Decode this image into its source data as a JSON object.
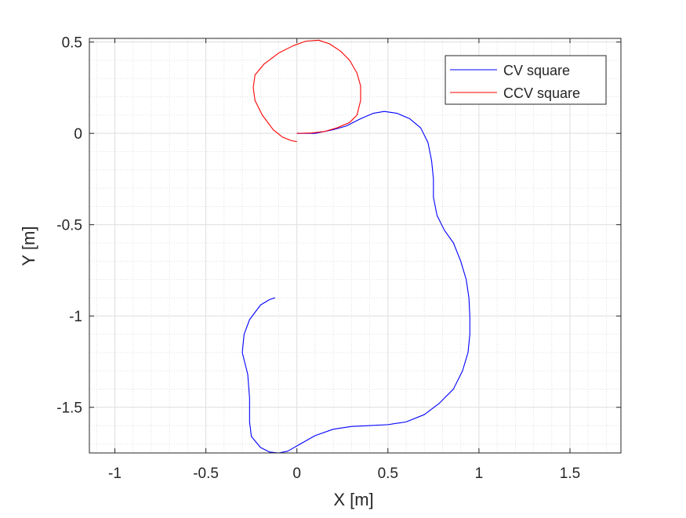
{
  "chart_data": {
    "type": "line",
    "title": "",
    "xlabel": "X [m]",
    "ylabel": "Y [m]",
    "xlim": [
      -1.14,
      1.78
    ],
    "ylim": [
      -1.75,
      0.52
    ],
    "xticks": [
      -1,
      -0.5,
      0,
      0.5,
      1,
      1.5
    ],
    "xtick_labels": [
      "-1",
      "-0.5",
      "0",
      "0.5",
      "1",
      "1.5"
    ],
    "yticks": [
      -1.5,
      -1,
      -0.5,
      0,
      0.5
    ],
    "ytick_labels": [
      "-1.5",
      "-1",
      "-0.5",
      "0",
      "0.5"
    ],
    "grid": true,
    "minor_grid": true,
    "legend_position": "top-right",
    "series": [
      {
        "name": "CV square",
        "color": "#0000ff",
        "points": [
          [
            0.0,
            0.0
          ],
          [
            0.1,
            0.0
          ],
          [
            0.2,
            0.02
          ],
          [
            0.27,
            0.04
          ],
          [
            0.35,
            0.08
          ],
          [
            0.42,
            0.11
          ],
          [
            0.48,
            0.12
          ],
          [
            0.55,
            0.11
          ],
          [
            0.62,
            0.08
          ],
          [
            0.68,
            0.03
          ],
          [
            0.72,
            -0.05
          ],
          [
            0.74,
            -0.15
          ],
          [
            0.75,
            -0.25
          ],
          [
            0.75,
            -0.35
          ],
          [
            0.77,
            -0.45
          ],
          [
            0.81,
            -0.53
          ],
          [
            0.86,
            -0.6
          ],
          [
            0.9,
            -0.7
          ],
          [
            0.93,
            -0.8
          ],
          [
            0.945,
            -0.9
          ],
          [
            0.95,
            -1.0
          ],
          [
            0.95,
            -1.1
          ],
          [
            0.94,
            -1.2
          ],
          [
            0.91,
            -1.3
          ],
          [
            0.86,
            -1.4
          ],
          [
            0.78,
            -1.48
          ],
          [
            0.7,
            -1.54
          ],
          [
            0.6,
            -1.58
          ],
          [
            0.5,
            -1.595
          ],
          [
            0.4,
            -1.6
          ],
          [
            0.3,
            -1.605
          ],
          [
            0.2,
            -1.62
          ],
          [
            0.1,
            -1.655
          ],
          [
            0.02,
            -1.7
          ],
          [
            -0.05,
            -1.74
          ],
          [
            -0.1,
            -1.75
          ],
          [
            -0.15,
            -1.745
          ],
          [
            -0.2,
            -1.72
          ],
          [
            -0.25,
            -1.66
          ],
          [
            -0.26,
            -1.58
          ],
          [
            -0.26,
            -1.45
          ],
          [
            -0.27,
            -1.32
          ],
          [
            -0.3,
            -1.2
          ],
          [
            -0.29,
            -1.1
          ],
          [
            -0.26,
            -1.02
          ],
          [
            -0.2,
            -0.94
          ],
          [
            -0.15,
            -0.91
          ],
          [
            -0.12,
            -0.9
          ]
        ]
      },
      {
        "name": "CCV square",
        "color": "#ff0000",
        "points": [
          [
            0.0,
            -0.045
          ],
          [
            -0.03,
            -0.04
          ],
          [
            -0.08,
            -0.02
          ],
          [
            -0.13,
            0.02
          ],
          [
            -0.19,
            0.1
          ],
          [
            -0.23,
            0.18
          ],
          [
            -0.24,
            0.25
          ],
          [
            -0.23,
            0.32
          ],
          [
            -0.18,
            0.38
          ],
          [
            -0.1,
            0.44
          ],
          [
            -0.02,
            0.48
          ],
          [
            0.05,
            0.505
          ],
          [
            0.12,
            0.51
          ],
          [
            0.18,
            0.49
          ],
          [
            0.24,
            0.45
          ],
          [
            0.29,
            0.4
          ],
          [
            0.33,
            0.33
          ],
          [
            0.35,
            0.26
          ],
          [
            0.35,
            0.18
          ],
          [
            0.33,
            0.1
          ],
          [
            0.29,
            0.06
          ],
          [
            0.22,
            0.03
          ],
          [
            0.15,
            0.01
          ],
          [
            0.08,
            0.002
          ],
          [
            0.0,
            0.0
          ]
        ]
      }
    ]
  }
}
